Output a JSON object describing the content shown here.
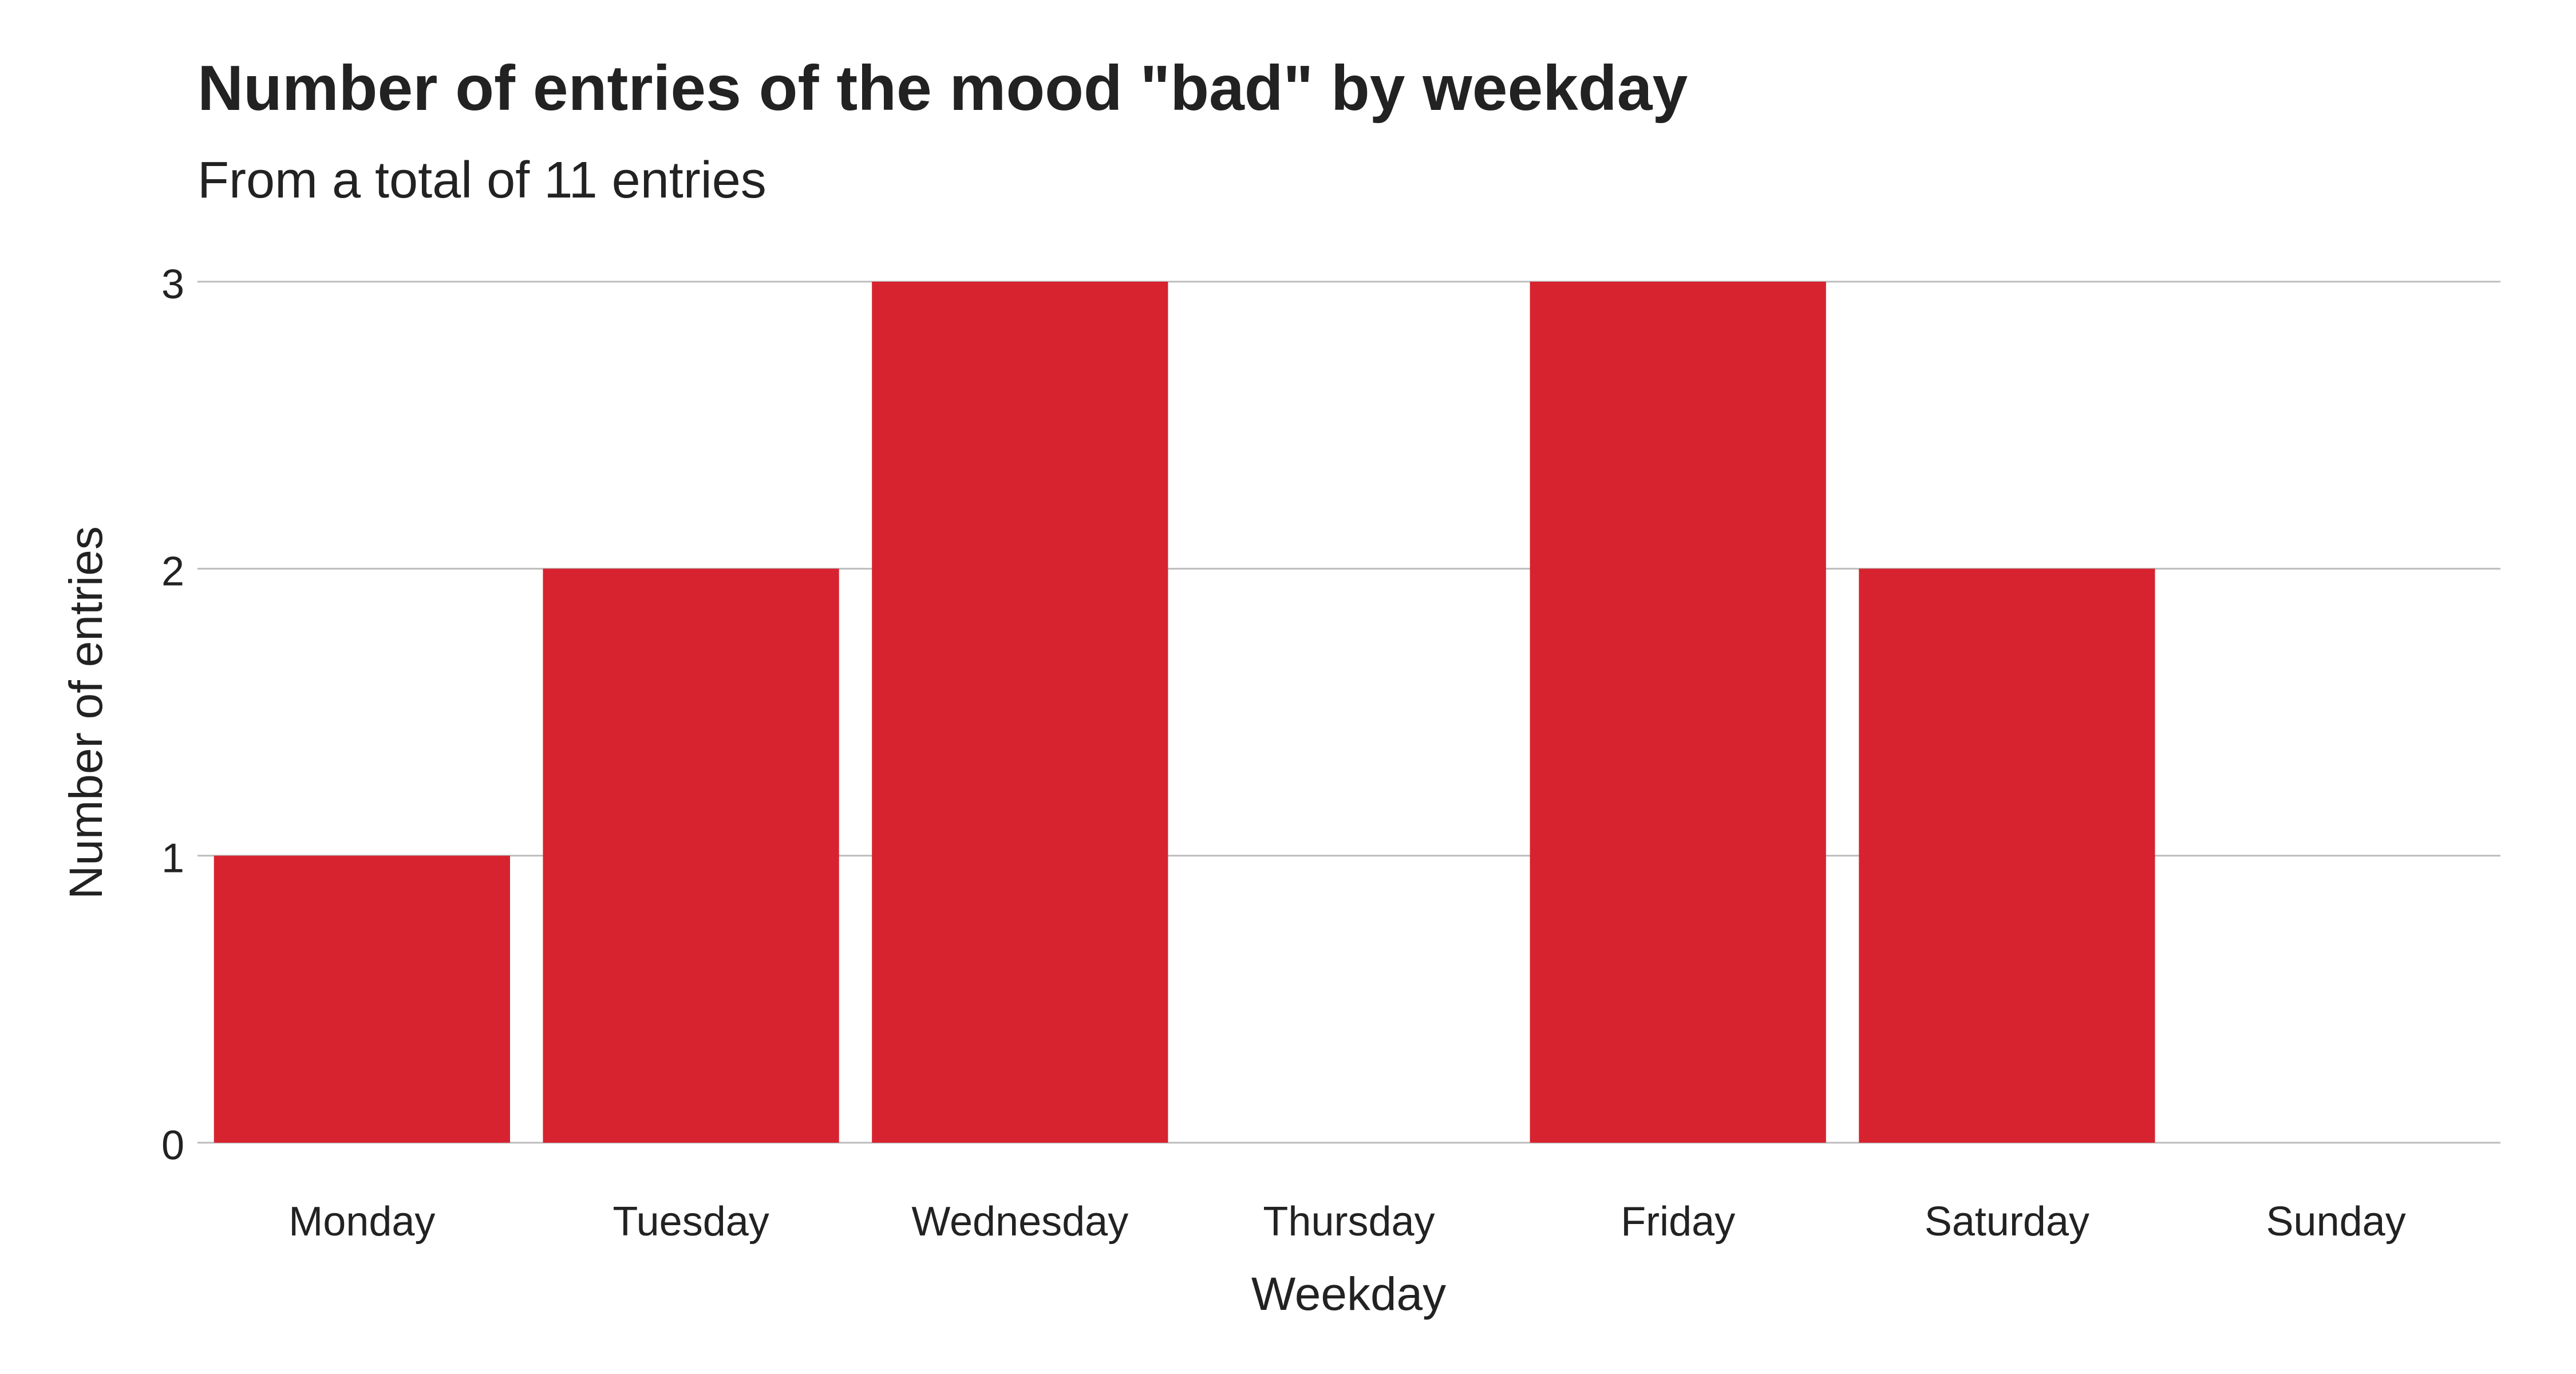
{
  "chart_data": {
    "type": "bar",
    "title": "Number of entries of the mood \"bad\" by weekday",
    "subtitle": "From a total of 11 entries",
    "xlabel": "Weekday",
    "ylabel": "Number of entries",
    "categories": [
      "Monday",
      "Tuesday",
      "Wednesday",
      "Thursday",
      "Friday",
      "Saturday",
      "Sunday"
    ],
    "values": [
      1,
      2,
      3,
      0,
      3,
      2,
      0
    ],
    "ylim": [
      0,
      3
    ],
    "yticks": [
      "0",
      "1",
      "2",
      "3"
    ],
    "grid": true,
    "legend": "none",
    "colors": {
      "bar": "#d7232f",
      "grid": "#bdbdbd",
      "text": "#222222"
    }
  }
}
